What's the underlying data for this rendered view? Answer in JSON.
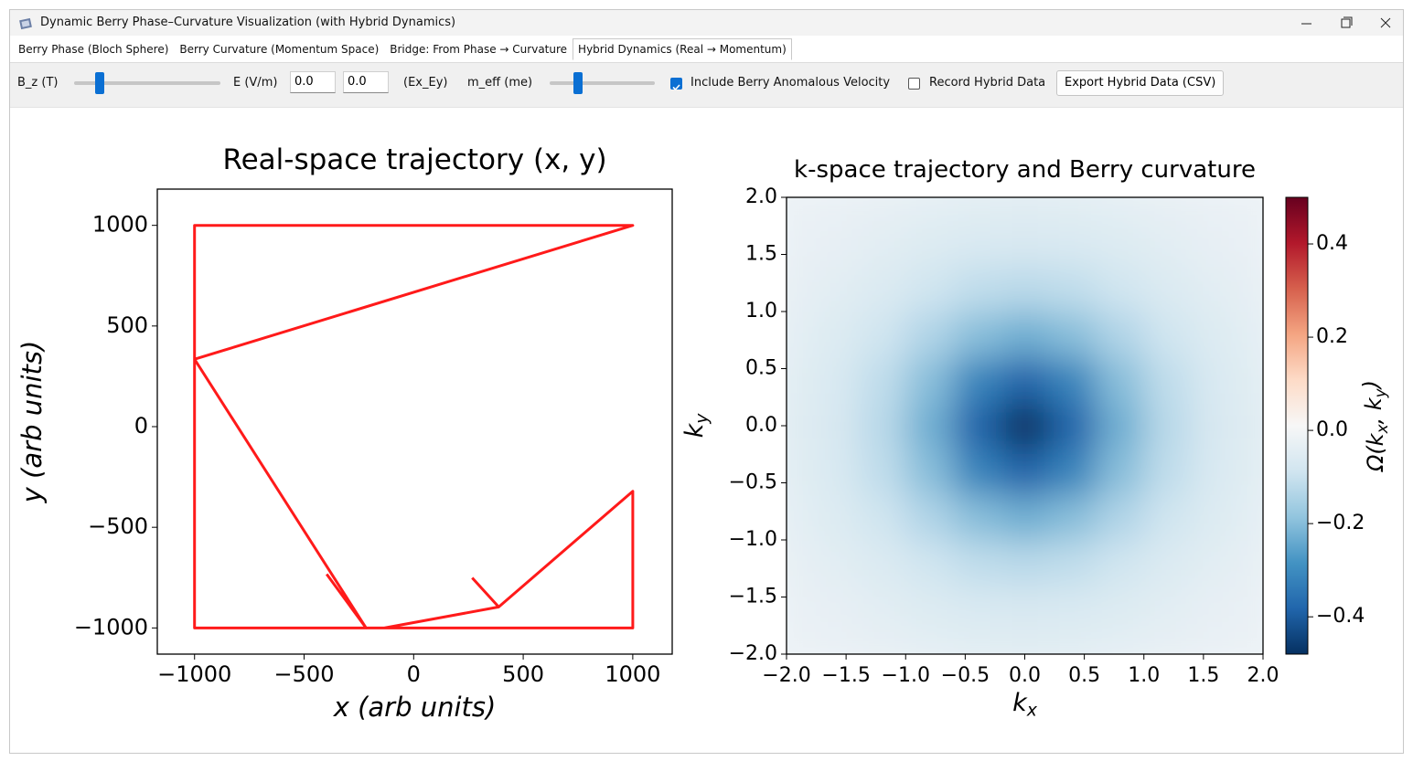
{
  "window": {
    "title": "Dynamic Berry Phase–Curvature Visualization (with Hybrid Dynamics)"
  },
  "tabs": {
    "items": [
      "Berry Phase (Bloch Sphere)",
      "Berry Curvature (Momentum Space)",
      "Bridge: From Phase → Curvature",
      "Hybrid Dynamics (Real → Momentum)"
    ],
    "active": 3
  },
  "toolbar": {
    "bz_label": "B_z (T)",
    "e_label": "E (V/m)",
    "e_fields": [
      "0.0",
      "0.0"
    ],
    "e_suffix": "(Ex_Ey)",
    "meff_label": "m_eff (me)",
    "checkboxes": [
      {
        "label": "Include Berry Anomalous Velocity",
        "checked": true
      },
      {
        "label": "Record Hybrid Data",
        "checked": false
      }
    ],
    "export_button": "Export Hybrid Data (CSV)"
  },
  "chart_data": [
    {
      "type": "line",
      "title": "Real-space trajectory (x, y)",
      "xlabel": "x (arb units)",
      "ylabel": "y (arb units)",
      "xlim": [
        -1170,
        1180
      ],
      "ylim": [
        -1130,
        1180
      ],
      "xticks": [
        {
          "value": -1000,
          "label": "−1000"
        },
        {
          "value": -500,
          "label": "−500"
        },
        0,
        500,
        1000
      ],
      "yticks": [
        {
          "value": -1000,
          "label": "−1000"
        },
        {
          "value": -500,
          "label": "−500"
        },
        0,
        500,
        1000
      ],
      "series": [
        {
          "color": "#ff1a1a",
          "x": [
            -397,
            -217,
            -1000,
            1000,
            -1000,
            -1000,
            1000,
            1000,
            388,
            -134,
            null,
            388,
            267
          ],
          "y": [
            -733,
            -1000,
            335,
            1000,
            1000,
            -1000,
            -1000,
            -321,
            -896,
            -1000,
            null,
            -896,
            -751
          ]
        }
      ]
    },
    {
      "type": "heatmap",
      "title": "k-space trajectory and Berry curvature",
      "xlabel": {
        "base": "k",
        "sub": "x"
      },
      "ylabel": {
        "base": "k",
        "sub": "y"
      },
      "xlim": [
        -2,
        2
      ],
      "ylim": [
        -2,
        2
      ],
      "xticks": [
        {
          "value": -2,
          "label": "−2.0"
        },
        {
          "value": -1.5,
          "label": "−1.5"
        },
        {
          "value": -1,
          "label": "−1.0"
        },
        {
          "value": -0.5,
          "label": "−0.5"
        },
        {
          "value": 0,
          "label": "0.0"
        },
        0.5,
        {
          "value": 1,
          "label": "1.0"
        },
        1.5,
        {
          "value": 2,
          "label": "2.0"
        }
      ],
      "yticks": [
        {
          "value": -2,
          "label": "−2.0"
        },
        {
          "value": -1.5,
          "label": "−1.5"
        },
        {
          "value": -1,
          "label": "−1.0"
        },
        {
          "value": -0.5,
          "label": "−0.5"
        },
        {
          "value": 0,
          "label": "0.0"
        },
        0.5,
        {
          "value": 1,
          "label": "1.0"
        },
        1.5,
        {
          "value": 2,
          "label": "2.0"
        }
      ],
      "x": [
        -2,
        -1.6,
        -1.2,
        -0.8,
        -0.4,
        0,
        0.4,
        0.8,
        1.2,
        1.6,
        2
      ],
      "y": [
        -2,
        -1.6,
        -1.2,
        -0.8,
        -0.4,
        0,
        0.4,
        0.8,
        1.2,
        1.6,
        2
      ],
      "values": [
        [
          -0.018,
          -0.023,
          -0.029,
          -0.036,
          -0.041,
          -0.043,
          -0.041,
          -0.036,
          -0.029,
          -0.023,
          -0.018
        ],
        [
          -0.023,
          -0.032,
          -0.043,
          -0.056,
          -0.067,
          -0.071,
          -0.067,
          -0.056,
          -0.043,
          -0.032,
          -0.023
        ],
        [
          -0.029,
          -0.043,
          -0.063,
          -0.089,
          -0.114,
          -0.126,
          -0.114,
          -0.089,
          -0.063,
          -0.043,
          -0.029
        ],
        [
          -0.036,
          -0.056,
          -0.089,
          -0.139,
          -0.199,
          -0.229,
          -0.199,
          -0.139,
          -0.089,
          -0.056,
          -0.036
        ],
        [
          -0.041,
          -0.067,
          -0.114,
          -0.199,
          -0.316,
          -0.384,
          -0.316,
          -0.199,
          -0.114,
          -0.067,
          -0.041
        ],
        [
          -0.043,
          -0.071,
          -0.126,
          -0.229,
          -0.384,
          -0.48,
          -0.384,
          -0.229,
          -0.126,
          -0.071,
          -0.043
        ],
        [
          -0.041,
          -0.067,
          -0.114,
          -0.199,
          -0.316,
          -0.384,
          -0.316,
          -0.199,
          -0.114,
          -0.067,
          -0.041
        ],
        [
          -0.036,
          -0.056,
          -0.089,
          -0.139,
          -0.199,
          -0.229,
          -0.199,
          -0.139,
          -0.089,
          -0.056,
          -0.036
        ],
        [
          -0.029,
          -0.043,
          -0.063,
          -0.089,
          -0.114,
          -0.126,
          -0.114,
          -0.089,
          -0.063,
          -0.043,
          -0.029
        ],
        [
          -0.023,
          -0.032,
          -0.043,
          -0.056,
          -0.067,
          -0.071,
          -0.067,
          -0.056,
          -0.043,
          -0.032,
          -0.023
        ],
        [
          -0.018,
          -0.023,
          -0.029,
          -0.036,
          -0.041,
          -0.043,
          -0.041,
          -0.036,
          -0.029,
          -0.023,
          -0.018
        ]
      ],
      "colormap": "RdBu_r",
      "clim": [
        -0.48,
        0.5
      ],
      "colorbar_ticks": [
        {
          "value": -0.4,
          "label": "−0.4"
        },
        {
          "value": -0.2,
          "label": "−0.2"
        },
        {
          "value": 0,
          "label": "0.0"
        },
        0.2,
        0.4
      ],
      "colorbar_label": [
        "Ω(k",
        "x",
        ", k",
        "y",
        ")"
      ]
    }
  ]
}
